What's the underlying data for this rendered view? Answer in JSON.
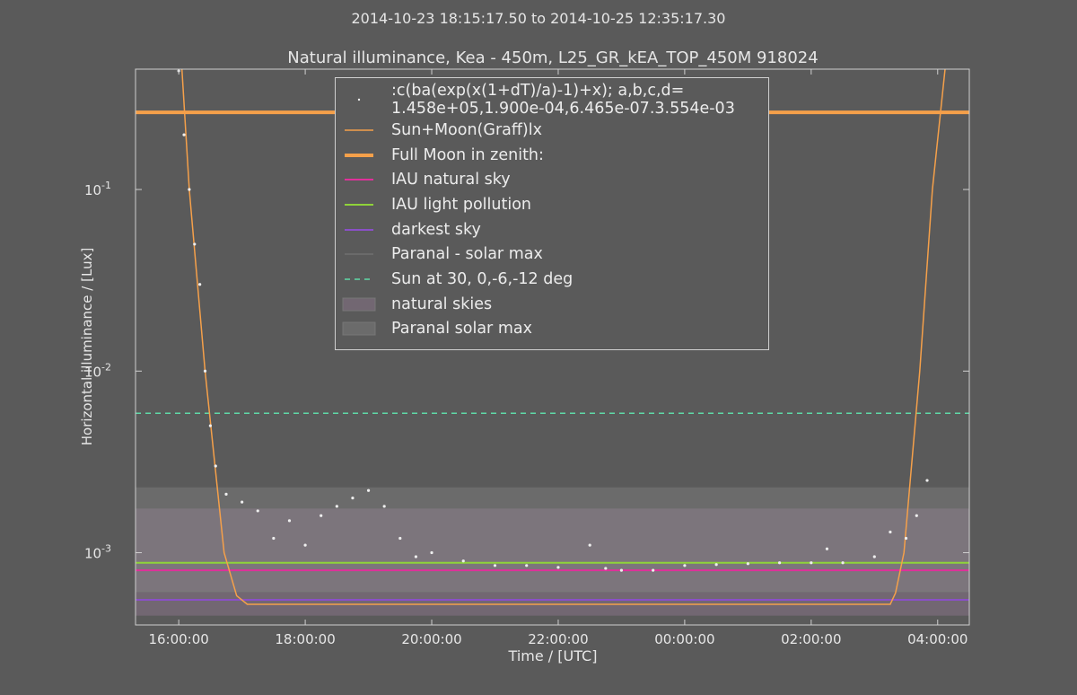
{
  "chart_data": {
    "type": "line",
    "subtitle": "2014-10-23 18:15:17.50 to 2014-10-25 12:35:17.30",
    "title": "Natural illuminance, Kea - 450m, L25_GR_kEA_TOP_450M 918024",
    "x_label": "Time / [UTC]",
    "y_label": "Horizontal illuminance / [Lux]",
    "log_y": true,
    "xlim": [
      "15:19:00",
      "04:30:00"
    ],
    "xticks": [
      "16:00:00",
      "18:00:00",
      "20:00:00",
      "22:00:00",
      "00:00:00",
      "02:00:00",
      "04:00:00"
    ],
    "ylim": [
      0.0004,
      0.46
    ],
    "yticks": [
      {
        "value": 0.001,
        "label": "10",
        "exponent": "-3"
      },
      {
        "value": 0.01,
        "label": "10",
        "exponent": "-2"
      },
      {
        "value": 0.1,
        "label": "10",
        "exponent": "-1"
      }
    ],
    "series": [
      {
        "name": ":c(ba(exp(x(1+dT)/a)-1)+x); a,b,c,d=\n1.458e+05,1.900e-04,6.465e-07.3.554e-03",
        "style": "points",
        "color": "#eeeeee",
        "x": [
          "16:00:00",
          "16:05:00",
          "16:10:00",
          "16:15:00",
          "16:20:00",
          "16:25:00",
          "16:30:00",
          "16:35:00",
          "16:45:00",
          "17:00:00",
          "17:15:00",
          "17:30:00",
          "17:45:00",
          "18:00:00",
          "18:15:00",
          "18:30:00",
          "18:45:00",
          "19:00:00",
          "19:15:00",
          "19:30:00",
          "19:45:00",
          "20:00:00",
          "20:30:00",
          "21:00:00",
          "21:30:00",
          "22:00:00",
          "22:30:00",
          "22:45:00",
          "23:00:00",
          "23:30:00",
          "00:00:00",
          "00:30:00",
          "01:00:00",
          "01:30:00",
          "02:00:00",
          "02:15:00",
          "02:30:00",
          "03:00:00",
          "03:15:00",
          "03:30:00",
          "03:40:00",
          "03:50:00"
        ],
        "values": [
          0.45,
          0.2,
          0.1,
          0.05,
          0.03,
          0.01,
          0.005,
          0.003,
          0.0021,
          0.0019,
          0.0017,
          0.0012,
          0.0015,
          0.0011,
          0.0016,
          0.0018,
          0.002,
          0.0022,
          0.0018,
          0.0012,
          0.00095,
          0.001,
          0.0009,
          0.00085,
          0.00085,
          0.00083,
          0.0011,
          0.00082,
          0.0008,
          0.0008,
          0.00085,
          0.00086,
          0.00087,
          0.00088,
          0.00088,
          0.00105,
          0.00088,
          0.00095,
          0.0013,
          0.0012,
          0.0016,
          0.0025
        ]
      },
      {
        "name": "Sun+Moon(Graff)lx",
        "style": "line",
        "color": "#f5a04a",
        "x": [
          "16:03:00",
          "16:10:00",
          "16:25:00",
          "16:43:00",
          "16:55:00",
          "17:05:00",
          "03:15:00",
          "03:20:00",
          "03:28:00",
          "03:43:00",
          "03:55:00",
          "04:07:00"
        ],
        "values": [
          0.46,
          0.1,
          0.01,
          0.001,
          0.00058,
          0.00052,
          0.00052,
          0.0006,
          0.001,
          0.01,
          0.1,
          0.46
        ]
      },
      {
        "name": "Full Moon in zenith:",
        "style": "hline",
        "color": "#f5a04a",
        "width": 4,
        "values": [
          0.266
        ]
      },
      {
        "name": "IAU natural sky",
        "style": "hline",
        "color": "#e0309a",
        "width": 2,
        "values": [
          0.0008
        ]
      },
      {
        "name": "IAU light pollution",
        "style": "hline",
        "color": "#8fd33a",
        "width": 2,
        "values": [
          0.00088
        ]
      },
      {
        "name": "darkest sky",
        "style": "hline",
        "color": "#8a4fc8",
        "width": 2,
        "values": [
          0.00055
        ]
      },
      {
        "name": "Paranal - solar max",
        "style": "hline",
        "color": "#7a7a7a",
        "width": 1,
        "values": [
          0.00061
        ]
      },
      {
        "name": "Sun at 30, 0,-6,-12 deg",
        "style": "dashed",
        "color": "#5fd9a8",
        "width": 1.5,
        "values": [
          0.00586
        ]
      },
      {
        "name": "natural skies",
        "style": "band",
        "color": "rgba(200,150,200,0.22)",
        "values": [
          0.00045,
          0.00175
        ]
      },
      {
        "name": "Paranal solar max",
        "style": "band",
        "color": "rgba(150,150,150,0.3)",
        "values": [
          0.00061,
          0.00229
        ]
      }
    ]
  }
}
